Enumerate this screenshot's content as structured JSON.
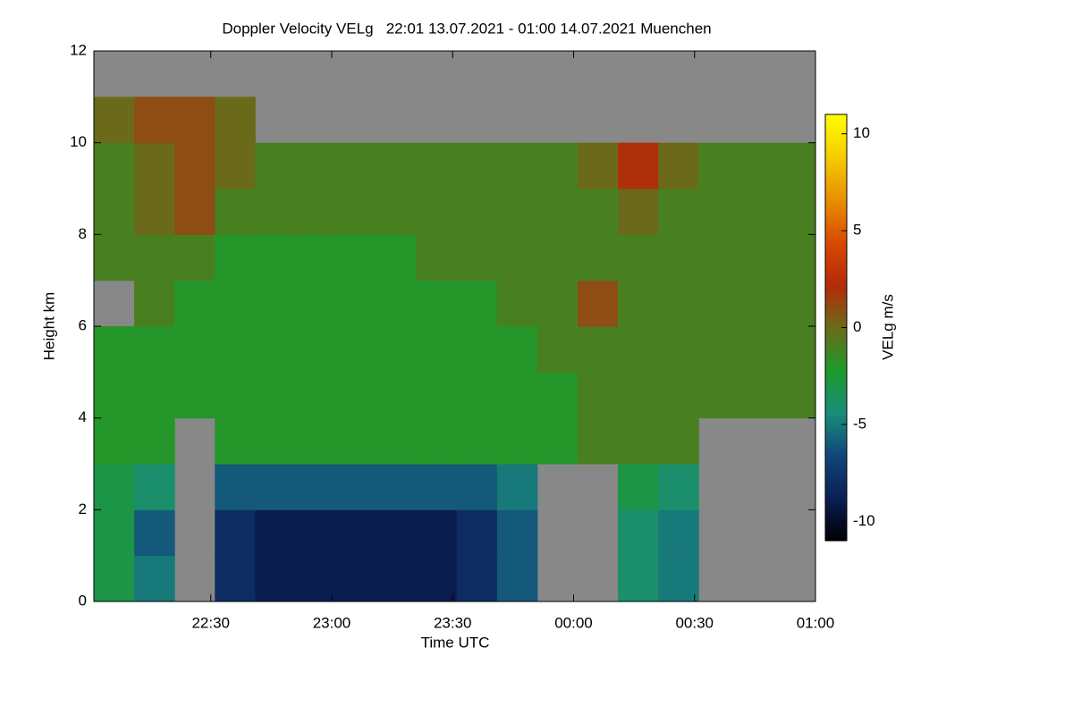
{
  "chart_data": {
    "type": "heatmap",
    "title": "Doppler Velocity VELg   22:01 13.07.2021 - 01:00 14.07.2021 Muenchen",
    "xlabel": "Time UTC",
    "ylabel": "Height km",
    "colorbar_label": "VELg m/s",
    "xlim": [
      "22:01",
      "01:00"
    ],
    "xticks": [
      "22:30",
      "23:00",
      "23:30",
      "00:00",
      "00:30",
      "01:00"
    ],
    "ylim": [
      0,
      12
    ],
    "yticks": [
      0,
      2,
      4,
      6,
      8,
      10,
      12
    ],
    "zlim": [
      -11,
      11
    ],
    "zticks": [
      -10,
      -5,
      0,
      5,
      10
    ],
    "colormap": [
      "#000000",
      "#0b1f55",
      "#12467a",
      "#1a8c7a",
      "#1e9a2a",
      "#6b6a1a",
      "#b52a0a",
      "#d84a00",
      "#e89000",
      "#f5cc00",
      "#ffff00"
    ],
    "missing_color": "#888888",
    "xbins": [
      "22:01",
      "22:11",
      "22:21",
      "22:31",
      "22:41",
      "22:51",
      "23:01",
      "23:11",
      "23:21",
      "23:31",
      "23:41",
      "23:51",
      "00:01",
      "00:11",
      "00:21",
      "00:31",
      "00:41",
      "00:51",
      "01:00"
    ],
    "ybins": [
      0,
      1,
      2,
      3,
      4,
      5,
      6,
      7,
      8,
      9,
      10,
      11,
      12
    ],
    "values": [
      [
        -3,
        -5,
        null,
        -8,
        -9,
        -9,
        -9,
        -9,
        -9,
        -8,
        -6,
        null,
        null,
        -4,
        -5,
        null,
        null,
        null
      ],
      [
        -3,
        -6,
        null,
        -8,
        -9,
        -9,
        -9,
        -9,
        -9,
        -8,
        -6,
        null,
        null,
        -4,
        -5,
        null,
        null,
        null
      ],
      [
        -3,
        -4,
        null,
        -6,
        -6,
        -6,
        -6,
        -6,
        -6,
        -6,
        -5,
        null,
        null,
        -3,
        -4,
        null,
        null,
        null
      ],
      [
        -2,
        -2,
        null,
        -2,
        -2,
        -2,
        -2,
        -2,
        -2,
        -2,
        -2,
        -2,
        -1,
        -1,
        -1,
        null,
        null,
        null
      ],
      [
        -2,
        -2,
        -2,
        -2,
        -2,
        -2,
        -2,
        -2,
        -2,
        -2,
        -2,
        -2,
        -1,
        -1,
        -1,
        -1,
        -1,
        -1
      ],
      [
        -2,
        -2,
        -2,
        -2,
        -2,
        -2,
        -2,
        -2,
        -2,
        -2,
        -2,
        -1,
        -1,
        -1,
        -1,
        -1,
        -1,
        -1
      ],
      [
        null,
        -1,
        -2,
        -2,
        -2,
        -2,
        -2,
        -2,
        -2,
        -2,
        -1,
        -1,
        1,
        -1,
        -1,
        -1,
        -1,
        -1
      ],
      [
        -1,
        -1,
        -1,
        -2,
        -2,
        -2,
        -2,
        -2,
        -1,
        -1,
        -1,
        -1,
        -1,
        -1,
        -1,
        -1,
        -1,
        -1
      ],
      [
        -1,
        0,
        1,
        -1,
        -1,
        -1,
        -1,
        -1,
        -1,
        -1,
        -1,
        -1,
        -1,
        0,
        -1,
        -1,
        -1,
        -1
      ],
      [
        -1,
        0,
        1,
        0,
        -1,
        -1,
        -1,
        -1,
        -1,
        -1,
        -1,
        -1,
        0,
        2,
        0,
        -1,
        -1,
        -1
      ],
      [
        0,
        1,
        1,
        0,
        null,
        null,
        null,
        null,
        null,
        null,
        null,
        null,
        null,
        null,
        null,
        null,
        null,
        null
      ],
      [
        null,
        null,
        null,
        null,
        null,
        null,
        null,
        null,
        null,
        null,
        null,
        null,
        null,
        null,
        null,
        null,
        null,
        null
      ]
    ]
  }
}
